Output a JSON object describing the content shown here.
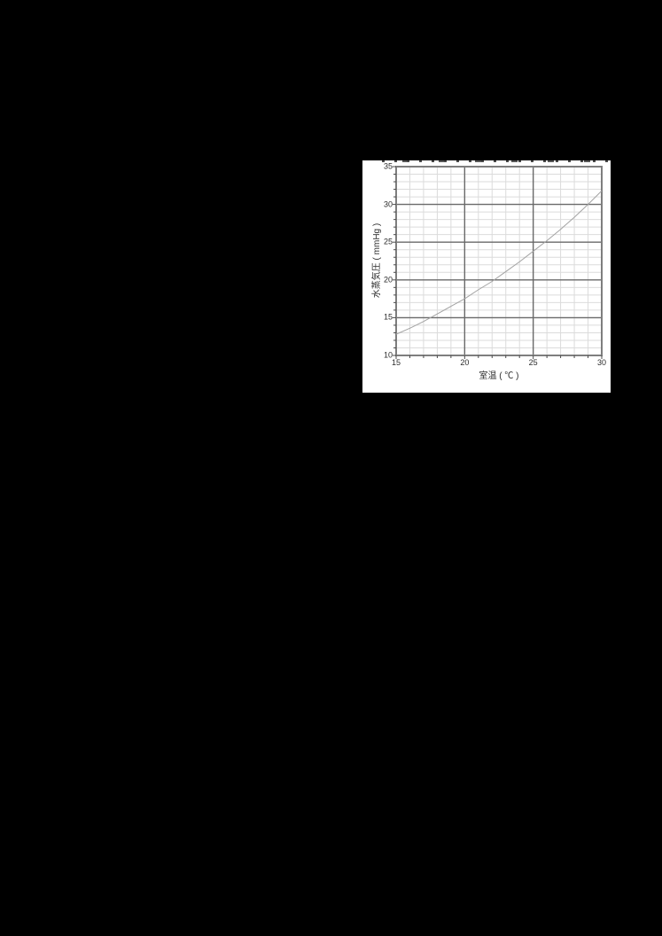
{
  "page": {
    "background_color": "#000000",
    "panel_color": "#ffffff"
  },
  "chart_data": {
    "type": "line",
    "title": "",
    "xlabel": "室温 ( ℃ )",
    "ylabel": "水蒸気圧 ( mmHg )",
    "xlim": [
      15,
      30
    ],
    "ylim": [
      10,
      35
    ],
    "x_major_ticks": [
      15,
      20,
      25,
      30
    ],
    "y_major_ticks": [
      10,
      15,
      20,
      25,
      30,
      35
    ],
    "x_minor_step": 1,
    "y_minor_step": 1,
    "grid": "major-and-minor",
    "legend_position": "none",
    "series": [
      {
        "name": "saturated-water-vapor-pressure-curve",
        "x": [
          15,
          16,
          17,
          18,
          19,
          20,
          21,
          22,
          23,
          24,
          25,
          26,
          27,
          28,
          29,
          30
        ],
        "y": [
          12.8,
          13.6,
          14.5,
          15.5,
          16.5,
          17.5,
          18.7,
          19.8,
          21.1,
          22.4,
          23.8,
          25.2,
          26.7,
          28.3,
          30.0,
          31.8
        ],
        "color": "#a3a3a3"
      }
    ],
    "colors": {
      "minor_grid": "#dbdbdb",
      "major_grid": "#696969",
      "frame": "#7e7e7e",
      "tick_mark": "#4a4a4a",
      "tick_text": "#2b2b2b"
    }
  }
}
